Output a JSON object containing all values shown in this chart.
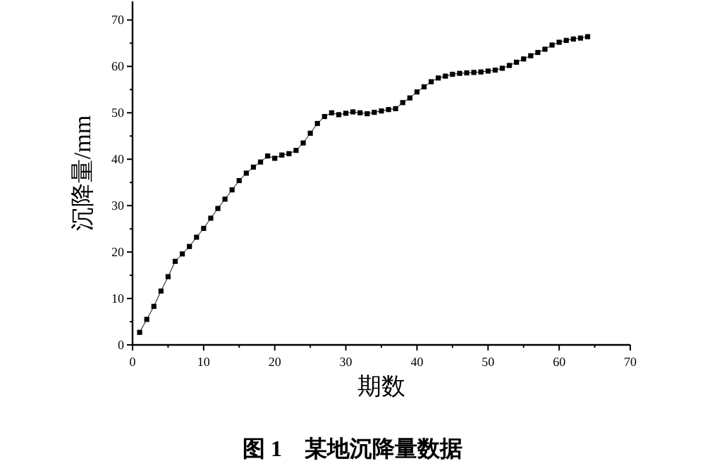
{
  "chart_data": {
    "type": "line",
    "title": "图 1　某地沉降量数据",
    "xlabel": "期数",
    "ylabel": "沉降量/mm",
    "x": [
      1,
      2,
      3,
      4,
      5,
      6,
      7,
      8,
      9,
      10,
      11,
      12,
      13,
      14,
      15,
      16,
      17,
      18,
      19,
      20,
      21,
      22,
      23,
      24,
      25,
      26,
      27,
      28,
      29,
      30,
      31,
      32,
      33,
      34,
      35,
      36,
      37,
      38,
      39,
      40,
      41,
      42,
      43,
      44,
      45,
      46,
      47,
      48,
      49,
      50,
      51,
      52,
      53,
      54,
      55,
      56,
      57,
      58,
      59,
      60,
      61,
      62,
      63,
      64
    ],
    "series": [
      {
        "color": "#000000",
        "values": [
          2.7,
          5.5,
          8.3,
          11.6,
          14.7,
          18.0,
          19.6,
          21.2,
          23.2,
          25.1,
          27.3,
          29.4,
          31.4,
          33.4,
          35.4,
          37.0,
          38.3,
          39.4,
          40.7,
          40.2,
          40.9,
          41.2,
          41.9,
          43.5,
          45.6,
          47.7,
          49.2,
          50.0,
          49.6,
          49.9,
          50.2,
          50.0,
          49.8,
          50.1,
          50.4,
          50.7,
          50.9,
          52.2,
          53.2,
          54.5,
          55.6,
          56.7,
          57.5,
          57.9,
          58.3,
          58.5,
          58.6,
          58.7,
          58.8,
          59.0,
          59.2,
          59.6,
          60.2,
          60.9,
          61.6,
          62.3,
          63.0,
          63.7,
          64.6,
          65.2,
          65.6,
          65.9,
          66.1,
          66.4
        ]
      }
    ],
    "xlim": [
      0,
      70
    ],
    "xticks": [
      0,
      10,
      20,
      30,
      40,
      50,
      60,
      70
    ],
    "ylim": [
      0,
      74
    ],
    "yticks": [
      0,
      10,
      20,
      30,
      40,
      50,
      60,
      70
    ],
    "marker": "square",
    "line_style": "solid"
  }
}
